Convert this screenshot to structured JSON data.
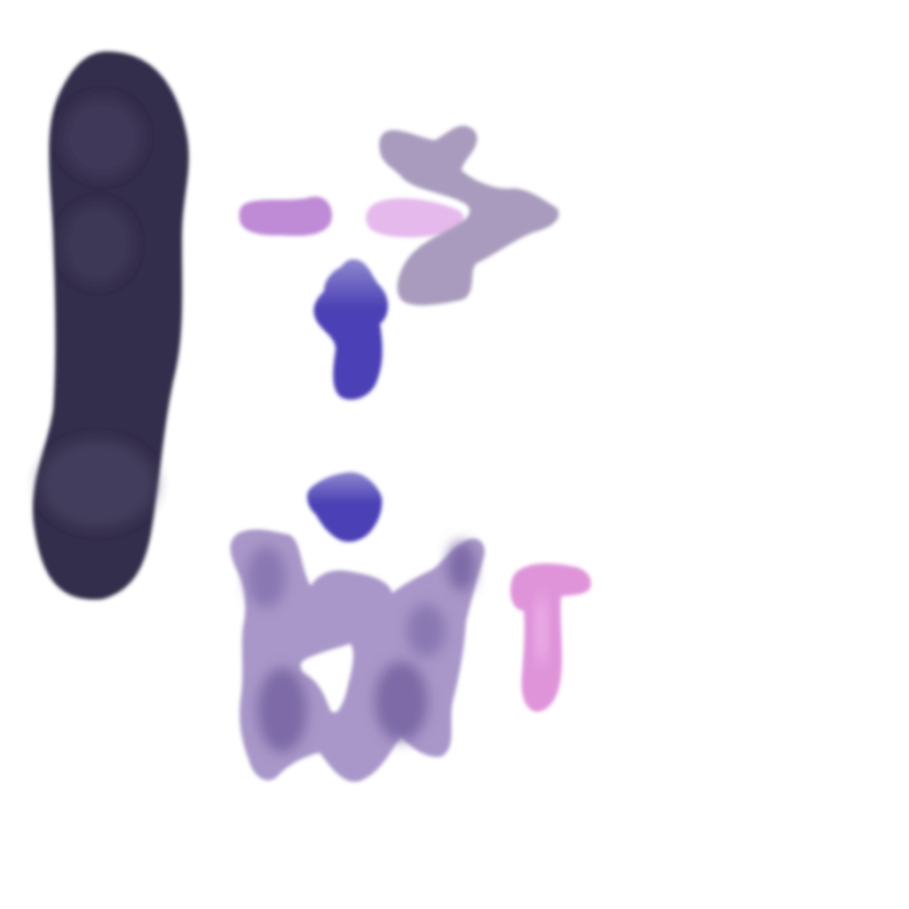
{
  "canvas": {
    "background": "#ffffff"
  },
  "strokes": [
    {
      "name": "dark-vertical-bar",
      "color": "#332d4b"
    },
    {
      "name": "mauve-dash",
      "color": "#bf8ad6"
    },
    {
      "name": "light-pink-dash",
      "color": "#e5b9ec"
    },
    {
      "name": "gray-arrow-shape",
      "color": "#a99bbd"
    },
    {
      "name": "blue-blob-upper",
      "color": "#4b41b5"
    },
    {
      "name": "blue-blob-lower",
      "color": "#4b41b5"
    },
    {
      "name": "lavender-scribble",
      "color": "#a997c9"
    },
    {
      "name": "pink-t-shape",
      "color": "#df94da"
    }
  ]
}
